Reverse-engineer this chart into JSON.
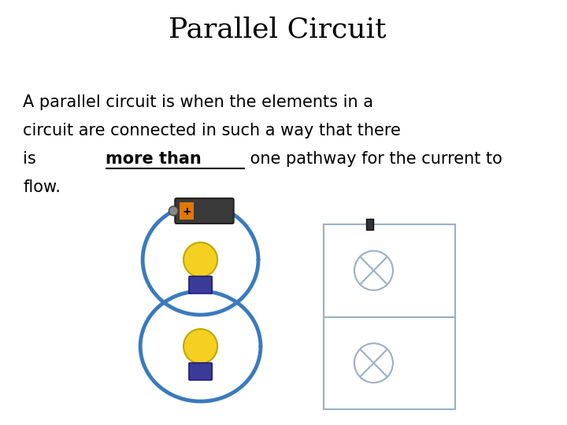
{
  "title": "Parallel Circuit",
  "title_fontsize": 26,
  "background_color": "#ffffff",
  "text_color": "#000000",
  "body_text_line1": "A parallel circuit is when the elements in a",
  "body_text_line2": "circuit are connected in such a way that there",
  "body_text_line3_before": "is ",
  "body_text_bold_underline": "more than",
  "body_text_line3_after": " one pathway for the current to",
  "body_text_line4": "flow.",
  "body_fontsize": 15,
  "blue_wire": "#3a7abf",
  "circuit_color": "#9ab0c8",
  "battery_color": "#555555",
  "bulb_yellow": "#f5d020",
  "bulb_base": "#3a3a99"
}
